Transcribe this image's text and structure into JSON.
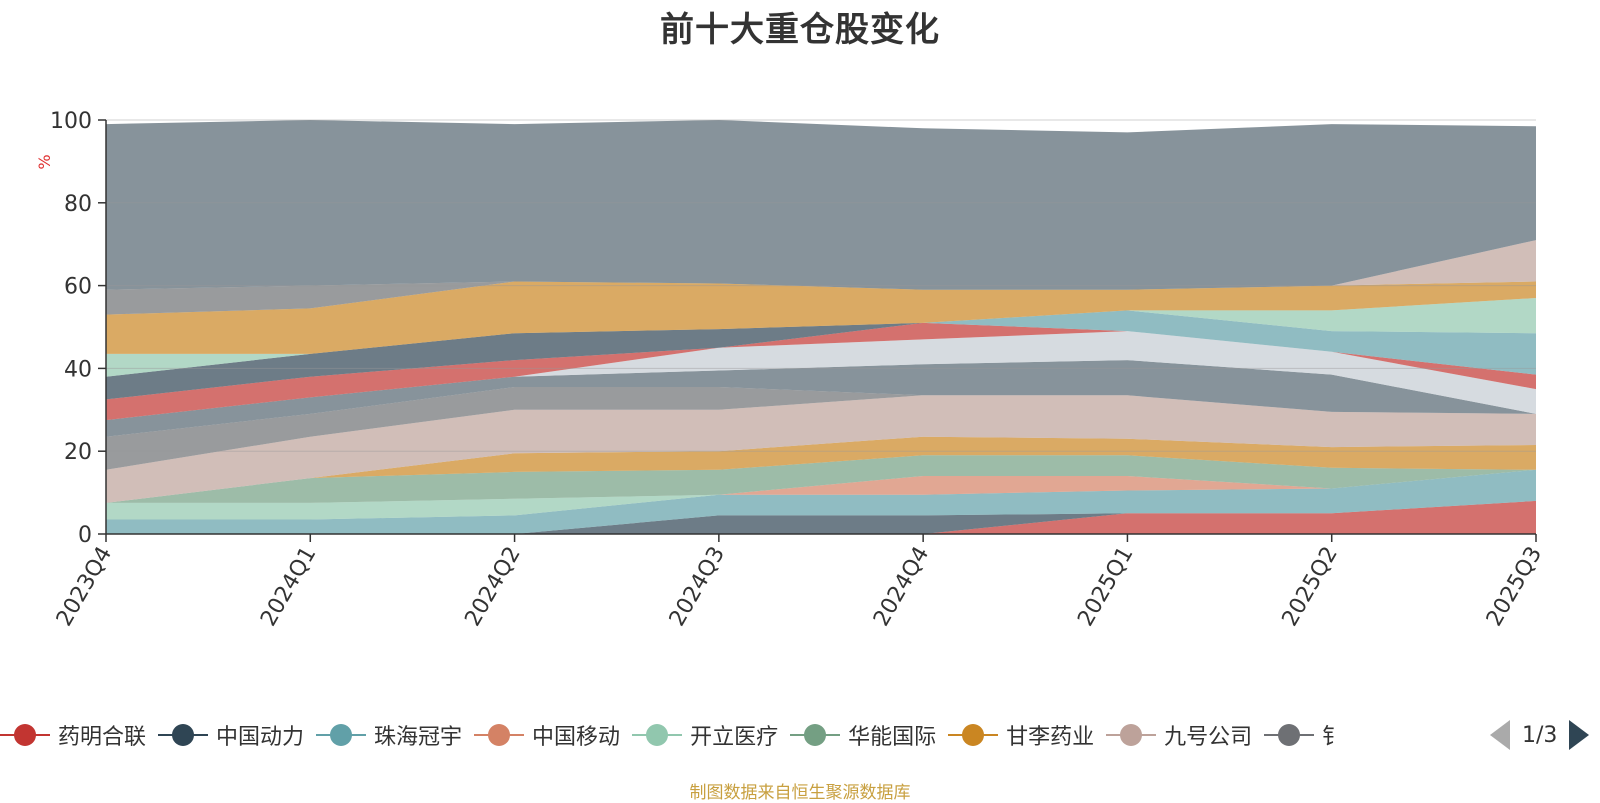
{
  "title": "前十大重仓股变化",
  "footer": "制图数据来自恒生聚源数据库",
  "pager": {
    "text": "1/3"
  },
  "legend": [
    {
      "name": "药明合联",
      "color": "#c23531"
    },
    {
      "name": "中国动力",
      "color": "#2f4554"
    },
    {
      "name": "珠海冠宇",
      "color": "#61a0a8"
    },
    {
      "name": "中国移动",
      "color": "#d48265"
    },
    {
      "name": "开立医疗",
      "color": "#91c7ae"
    },
    {
      "name": "华能国际",
      "color": "#749f83"
    },
    {
      "name": "甘李药业",
      "color": "#ca8622"
    },
    {
      "name": "九号公司",
      "color": "#bda29a"
    },
    {
      "name": "钅",
      "color": "#6e7074"
    }
  ],
  "chart_data": {
    "type": "area",
    "stacked": true,
    "ylabel": "%",
    "ylim": [
      0,
      100
    ],
    "yticks": [
      0,
      20,
      40,
      60,
      80,
      100
    ],
    "categories": [
      "2023Q4",
      "2024Q1",
      "2024Q2",
      "2024Q3",
      "2024Q4",
      "2025Q1",
      "2025Q2",
      "2025Q3"
    ],
    "layers": [
      {
        "color": "#c23531",
        "values": [
          0,
          0,
          0,
          0,
          0,
          5,
          5,
          8
        ]
      },
      {
        "color": "#2f4554",
        "values": [
          0,
          0,
          0,
          4.5,
          4.5,
          0,
          0,
          0
        ]
      },
      {
        "color": "#61a0a8",
        "values": [
          3.5,
          3.5,
          4.5,
          5,
          5,
          5.5,
          6,
          7.5
        ]
      },
      {
        "color": "#d48265",
        "values": [
          0,
          0,
          0,
          0,
          4.5,
          3.5,
          0,
          0
        ]
      },
      {
        "color": "#91c7ae",
        "values": [
          4,
          4,
          4,
          0,
          0,
          0,
          0,
          0
        ]
      },
      {
        "color": "#749f83",
        "values": [
          0,
          6,
          6.5,
          6,
          5,
          5,
          5,
          0
        ]
      },
      {
        "color": "#ca8622",
        "values": [
          0,
          0,
          4.5,
          4.5,
          4.5,
          4,
          5,
          6
        ]
      },
      {
        "color": "#bda29a",
        "values": [
          8,
          10,
          10.5,
          10,
          10,
          10.5,
          8.5,
          7.5
        ]
      },
      {
        "color": "#6e7074",
        "values": [
          8,
          5.5,
          5.5,
          5.5,
          0,
          0,
          0,
          0
        ]
      },
      {
        "color": "#546570",
        "values": [
          4,
          4,
          2.5,
          4,
          7.5,
          8.5,
          9,
          0
        ]
      },
      {
        "color": "#c4ccd3",
        "values": [
          0,
          0,
          0,
          5.5,
          6,
          7,
          5.5,
          6
        ]
      },
      {
        "color": "#c23531",
        "values": [
          5,
          5,
          4,
          0,
          4,
          0,
          0,
          3.5
        ]
      },
      {
        "color": "#2f4554",
        "values": [
          5.5,
          5.5,
          6.5,
          4.5,
          0,
          0,
          0,
          0
        ]
      },
      {
        "color": "#61a0a8",
        "values": [
          0,
          0,
          0,
          0,
          0,
          5,
          5,
          10
        ]
      },
      {
        "color": "#91c7ae",
        "values": [
          5.5,
          0,
          0,
          0,
          0,
          0,
          5,
          8.5
        ]
      },
      {
        "color": "#ca8622",
        "values": [
          9.5,
          11,
          12.5,
          11,
          8,
          5,
          6,
          4
        ]
      },
      {
        "color": "#bda29a",
        "values": [
          0,
          0,
          0,
          0,
          0,
          0,
          0,
          10
        ]
      },
      {
        "color": "#6e7074",
        "values": [
          6,
          5.5,
          0,
          0,
          0,
          0,
          0,
          0
        ]
      },
      {
        "color": "#546570",
        "values": [
          40,
          40,
          38,
          39.5,
          39,
          38,
          39,
          27.5
        ]
      }
    ]
  }
}
